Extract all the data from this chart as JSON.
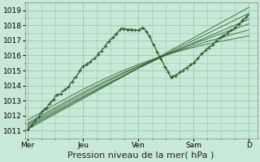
{
  "background_color": "#c8e8d8",
  "plot_bg_color": "#c8e8d8",
  "grid_color": "#98c8a8",
  "line_color": "#2d5e2d",
  "marker_color": "#2d5e2d",
  "ylim": [
    1010.5,
    1019.5
  ],
  "yticks": [
    1011,
    1012,
    1013,
    1014,
    1015,
    1016,
    1017,
    1018,
    1019
  ],
  "xlabel": "Pression niveau de la mer( hPa )",
  "xlabel_fontsize": 8,
  "tick_fontsize": 6.5,
  "x_day_labels": [
    "Mer",
    "Jeu",
    "Ven",
    "Sam",
    "D"
  ],
  "x_day_positions": [
    0,
    1,
    2,
    3,
    4
  ],
  "xlim": [
    -0.05,
    4.15
  ],
  "n_points": 300,
  "forecast_starts": [
    1011.1,
    1011.2,
    1011.3,
    1011.4,
    1011.5,
    1011.7
  ],
  "forecast_ends": [
    1019.2,
    1018.8,
    1018.4,
    1018.1,
    1017.7,
    1017.3
  ]
}
